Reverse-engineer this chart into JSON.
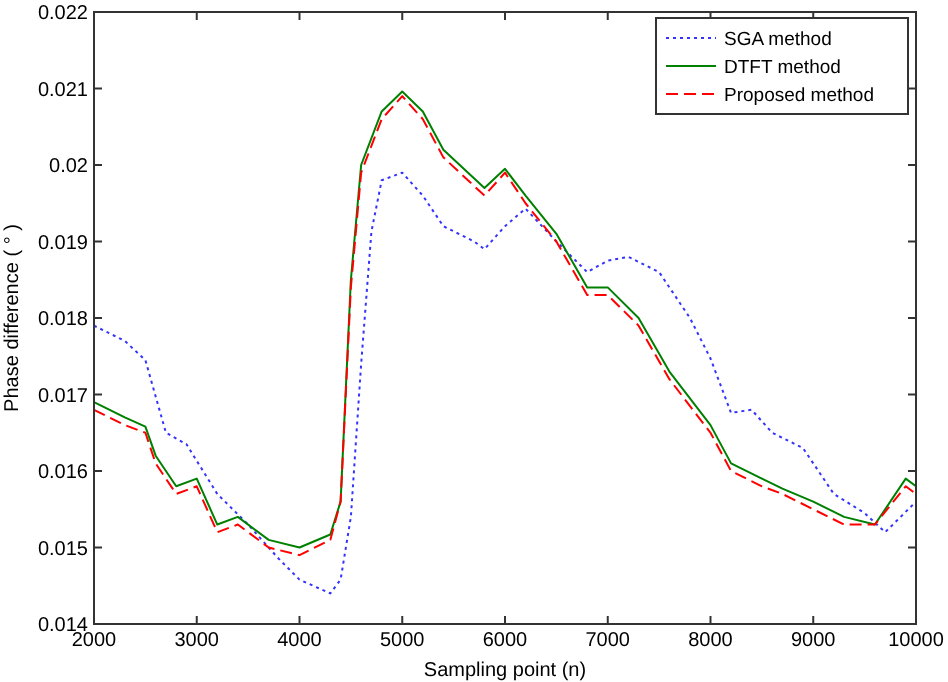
{
  "chart_data": {
    "type": "line",
    "xlabel": "Sampling point (n)",
    "ylabel": "Phase difference ( ° )",
    "xlim": [
      2000,
      10000
    ],
    "xticks": [
      2000,
      3000,
      4000,
      5000,
      6000,
      7000,
      8000,
      9000,
      10000
    ],
    "ylim": [
      0.014,
      0.022
    ],
    "yticks": [
      0.014,
      0.015,
      0.016,
      0.017,
      0.018,
      0.019,
      0.02,
      0.021,
      0.022
    ],
    "grid": false,
    "legend": "top right",
    "series": [
      {
        "name": "SGA method",
        "color": "#3333ff",
        "line_style": "dotted",
        "x": [
          2000,
          2300,
          2500,
          2700,
          2900,
          3200,
          3500,
          3800,
          4000,
          4300,
          4400,
          4500,
          4600,
          4700,
          4800,
          5000,
          5200,
          5400,
          5700,
          5800,
          6000,
          6200,
          6500,
          6800,
          7000,
          7200,
          7500,
          7800,
          8000,
          8200,
          8400,
          8600,
          8900,
          9200,
          9500,
          9700,
          10000
        ],
        "values": [
          0.0179,
          0.0177,
          0.01745,
          0.0165,
          0.01635,
          0.0157,
          0.0153,
          0.01485,
          0.01458,
          0.0144,
          0.01458,
          0.0154,
          0.0174,
          0.01913,
          0.0198,
          0.0199,
          0.0196,
          0.0192,
          0.019,
          0.0189,
          0.0192,
          0.01943,
          0.019,
          0.0186,
          0.01875,
          0.0188,
          0.0186,
          0.018,
          0.01747,
          0.01676,
          0.0168,
          0.0165,
          0.0163,
          0.0157,
          0.01545,
          0.0152,
          0.0156
        ]
      },
      {
        "name": "DTFT method",
        "color": "#008000",
        "line_style": "solid",
        "x": [
          2000,
          2300,
          2500,
          2600,
          2800,
          3000,
          3200,
          3400,
          3700,
          4000,
          4300,
          4400,
          4500,
          4600,
          4800,
          5000,
          5200,
          5400,
          5800,
          6000,
          6200,
          6500,
          6800,
          7000,
          7300,
          7600,
          8000,
          8200,
          8500,
          8700,
          9000,
          9300,
          9600,
          9900,
          10000
        ],
        "values": [
          0.0169,
          0.0167,
          0.01658,
          0.0162,
          0.0158,
          0.0159,
          0.0153,
          0.0154,
          0.0151,
          0.015,
          0.01517,
          0.0156,
          0.0185,
          0.02,
          0.0207,
          0.02096,
          0.0207,
          0.0202,
          0.0197,
          0.01995,
          0.0196,
          0.0191,
          0.0184,
          0.0184,
          0.018,
          0.0173,
          0.0166,
          0.0161,
          0.0159,
          0.01577,
          0.0156,
          0.0154,
          0.0153,
          0.0159,
          0.0158
        ]
      },
      {
        "name": "Proposed method",
        "color": "#ff0000",
        "line_style": "dashed",
        "x": [
          2000,
          2300,
          2500,
          2600,
          2800,
          3000,
          3200,
          3400,
          3700,
          4000,
          4300,
          4400,
          4500,
          4600,
          4800,
          5000,
          5200,
          5400,
          5800,
          6000,
          6200,
          6500,
          6800,
          7000,
          7300,
          7600,
          8000,
          8200,
          8500,
          8700,
          9000,
          9300,
          9600,
          9900,
          10000
        ],
        "values": [
          0.0168,
          0.0166,
          0.0165,
          0.0161,
          0.0157,
          0.0158,
          0.0152,
          0.0153,
          0.015,
          0.0149,
          0.0151,
          0.0156,
          0.0184,
          0.0199,
          0.0206,
          0.0209,
          0.0206,
          0.0201,
          0.0196,
          0.0199,
          0.0195,
          0.019,
          0.0183,
          0.0183,
          0.0179,
          0.0172,
          0.0165,
          0.016,
          0.0158,
          0.0157,
          0.0155,
          0.0153,
          0.0153,
          0.0158,
          0.0157
        ]
      }
    ]
  }
}
